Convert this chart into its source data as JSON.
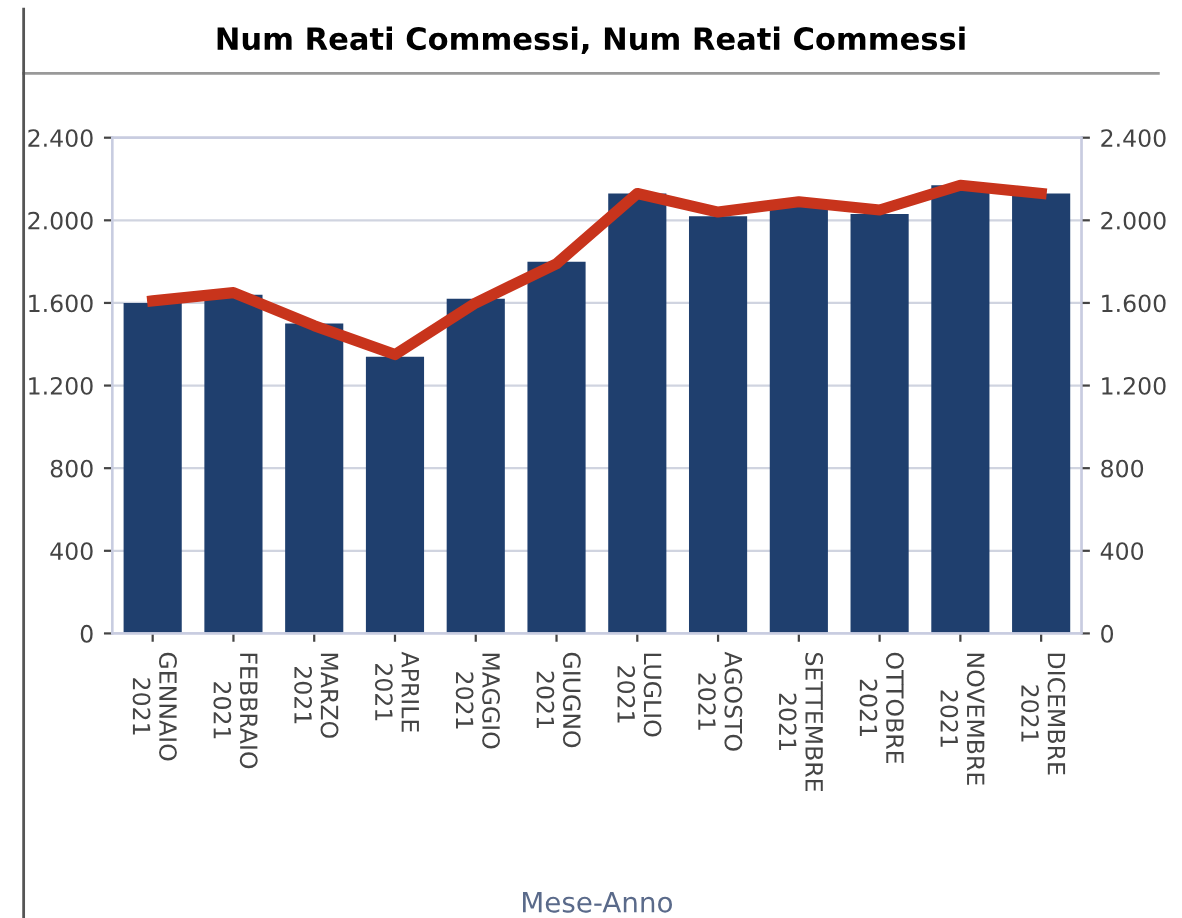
{
  "chart_data": {
    "type": "bar",
    "title": "Num Reati Commessi, Num Reati Commessi",
    "xlabel": "Mese-Anno",
    "categories": [
      "GENNAIO\n2021",
      "FEBBRAIO\n2021",
      "MARZO\n2021",
      "APRILE\n2021",
      "MAGGIO\n2021",
      "GIUGNO\n2021",
      "LUGLIO\n2021",
      "AGOSTO\n2021",
      "SETTEMBRE\n2021",
      "OTTOBRE\n2021",
      "NOVEMBRE\n2021",
      "DICEMBRE\n2021"
    ],
    "series": [
      {
        "color": "#1f3f6e",
        "values": [
          1600,
          1640,
          1500,
          1340,
          1620,
          1800,
          2130,
          2020,
          2070,
          2030,
          2170,
          2130
        ]
      },
      {
        "type": "line",
        "axis": "y2",
        "color": "#c8341c",
        "values": [
          1610,
          1650,
          1490,
          1350,
          1600,
          1790,
          2130,
          2040,
          2090,
          2050,
          2170,
          2130
        ]
      }
    ],
    "ylim": [
      0,
      2400
    ],
    "yticks": [
      {
        "value": 0,
        "label": "0"
      },
      {
        "value": 400,
        "label": "400"
      },
      {
        "value": 800,
        "label": "800"
      },
      {
        "value": 1200,
        "label": "1.200"
      },
      {
        "value": 1600,
        "label": "1.600"
      },
      {
        "value": 2000,
        "label": "2.000"
      },
      {
        "value": 2400,
        "label": "2.400"
      }
    ],
    "y2lim": [
      0,
      2400
    ],
    "y2ticks": [
      {
        "value": 0,
        "label": "0"
      },
      {
        "value": 400,
        "label": "400"
      },
      {
        "value": 800,
        "label": "800"
      },
      {
        "value": 1200,
        "label": "1.200"
      },
      {
        "value": 1600,
        "label": "1.600"
      },
      {
        "value": 2000,
        "label": "2.000"
      },
      {
        "value": 2400,
        "label": "2.400"
      }
    ],
    "grid": "y",
    "legend": false
  }
}
